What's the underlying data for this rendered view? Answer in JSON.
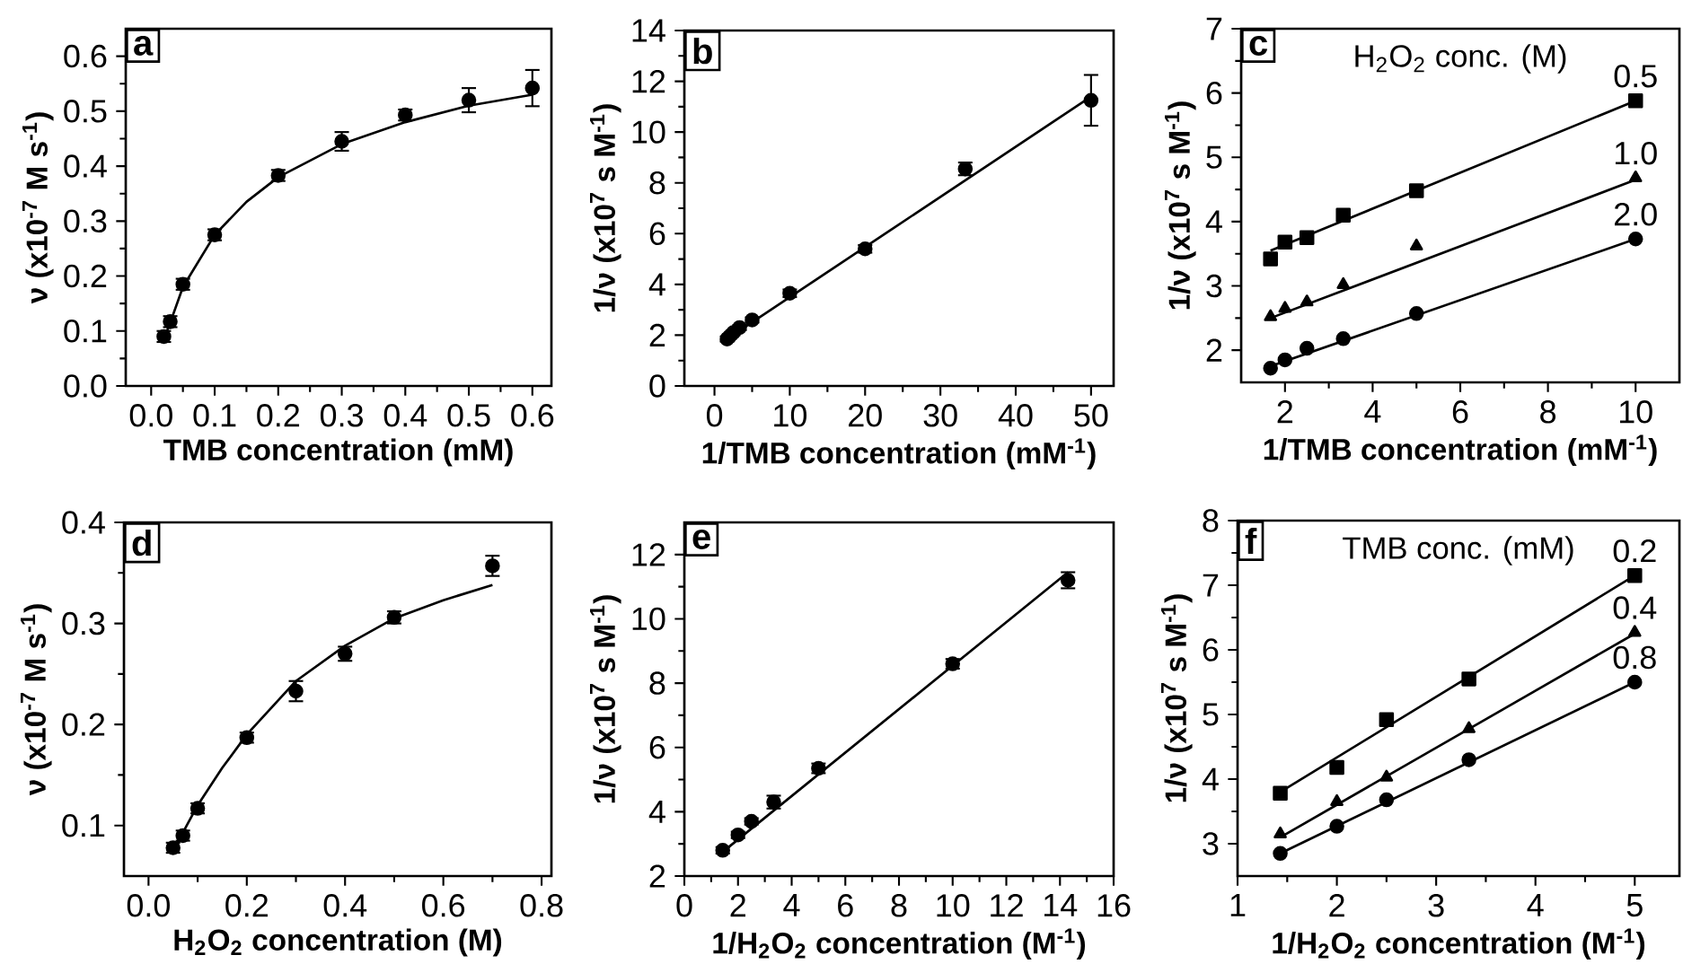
{
  "chart_data": [
    {
      "type": "scatter",
      "title": "a",
      "xlabel": "TMB concentration (mM)",
      "ylabel": "ν (x10$^{-7}$ M s$^{-1}$)",
      "xlim": [
        -0.04,
        0.63
      ],
      "ylim": [
        0,
        0.65
      ],
      "xticks": [
        {
          "value": 0,
          "label": "0.0"
        },
        0.1,
        0.2,
        0.3,
        0.4,
        0.5,
        0.6
      ],
      "yticks": [
        {
          "value": 0,
          "label": "0.0"
        },
        0.1,
        0.2,
        0.3,
        0.4,
        0.5,
        0.6
      ],
      "series": [
        {
          "marker": "circle",
          "color": "#000000",
          "x": [
            0.02,
            0.03,
            0.05,
            0.1,
            0.2,
            0.3,
            0.4,
            0.5,
            0.6
          ],
          "values": [
            0.09,
            0.117,
            0.185,
            0.275,
            0.383,
            0.445,
            0.493,
            0.52,
            0.542
          ],
          "errors": [
            0.01,
            0.01,
            0.01,
            0.01,
            0.01,
            0.017,
            0.01,
            0.022,
            0.033
          ]
        },
        {
          "type": "line",
          "marker": "none",
          "color": "#000000",
          "x": [
            0.02,
            0.03,
            0.05,
            0.1,
            0.15,
            0.2,
            0.3,
            0.4,
            0.5,
            0.6
          ],
          "values": [
            0.085,
            0.115,
            0.18,
            0.275,
            0.335,
            0.38,
            0.44,
            0.48,
            0.51,
            0.53
          ]
        }
      ]
    },
    {
      "type": "scatter",
      "title": "b",
      "xlabel": "1/TMB concentration (mM$^{-1}$)",
      "ylabel": "1/ν (x10$^{7}$ s M$^{-1}$)",
      "xlim": [
        -4,
        53
      ],
      "ylim": [
        0,
        14
      ],
      "xticks": [
        0,
        10,
        20,
        30,
        40,
        50
      ],
      "yticks": [
        0,
        2,
        4,
        6,
        8,
        10,
        12,
        14
      ],
      "series": [
        {
          "marker": "circle",
          "color": "#000000",
          "x": [
            1.67,
            2,
            2.5,
            3.33,
            5,
            10,
            20,
            33.3,
            50
          ],
          "values": [
            1.85,
            1.95,
            2.1,
            2.3,
            2.6,
            3.65,
            5.4,
            8.55,
            11.25
          ],
          "errors": [
            0.1,
            0.1,
            0.1,
            0.1,
            0.1,
            0.15,
            0.15,
            0.25,
            1.0
          ]
        },
        {
          "type": "line",
          "marker": "none",
          "color": "#000000",
          "x": [
            1.67,
            50
          ],
          "values": [
            1.85,
            11.4
          ]
        }
      ]
    },
    {
      "type": "scatter",
      "title": "c",
      "legend_title": "H$_{2}$O$_{2}$ conc. (M)",
      "xlabel": "1/TMB concentration (mM$^{-1}$)",
      "ylabel": "1/ν (x10$^{7}$ s M$^{-1}$)",
      "xlim": [
        1,
        11
      ],
      "ylim": [
        1.5,
        7
      ],
      "xticks": [
        2,
        4,
        6,
        8,
        10
      ],
      "yticks": [
        2,
        3,
        4,
        5,
        6,
        7
      ],
      "series": [
        {
          "name": "0.5",
          "marker": "square",
          "color": "#000000",
          "x": [
            1.67,
            2,
            2.5,
            3.33,
            5,
            10
          ],
          "values": [
            3.42,
            3.68,
            3.75,
            4.1,
            4.48,
            5.88
          ]
        },
        {
          "type": "line",
          "marker": "none",
          "color": "#000000",
          "x": [
            1.67,
            10
          ],
          "values": [
            3.55,
            5.88
          ]
        },
        {
          "name": "1.0",
          "marker": "triangle",
          "color": "#000000",
          "x": [
            1.67,
            2,
            2.5,
            3.33,
            5,
            10
          ],
          "values": [
            2.52,
            2.65,
            2.75,
            3.02,
            3.62,
            4.68
          ]
        },
        {
          "type": "line",
          "marker": "none",
          "color": "#000000",
          "x": [
            1.67,
            10
          ],
          "values": [
            2.5,
            4.65
          ]
        },
        {
          "name": "2.0",
          "marker": "circle",
          "color": "#000000",
          "x": [
            1.67,
            2,
            2.5,
            3.33,
            5,
            10
          ],
          "values": [
            1.72,
            1.85,
            2.03,
            2.18,
            2.57,
            3.73
          ]
        },
        {
          "type": "line",
          "marker": "none",
          "color": "#000000",
          "x": [
            1.67,
            10
          ],
          "values": [
            1.75,
            3.73
          ]
        }
      ]
    },
    {
      "type": "scatter",
      "title": "d",
      "xlabel": "H$_{2}$O$_{2}$ concentration (M)",
      "ylabel": "ν (x10$^{-7}$ M s$^{-1}$)",
      "xlim": [
        -0.05,
        0.82
      ],
      "ylim": [
        0.05,
        0.4
      ],
      "xticks": [
        {
          "value": 0,
          "label": "0.0"
        },
        0.2,
        0.4,
        0.6,
        0.8
      ],
      "yticks": [
        0.1,
        0.2,
        0.3,
        0.4
      ],
      "series": [
        {
          "marker": "circle",
          "color": "#000000",
          "x": [
            0.05,
            0.07,
            0.1,
            0.2,
            0.3,
            0.4,
            0.5,
            0.7
          ],
          "values": [
            0.078,
            0.09,
            0.117,
            0.187,
            0.233,
            0.27,
            0.306,
            0.357
          ],
          "errors": [
            0.005,
            0.005,
            0.005,
            0.005,
            0.01,
            0.007,
            0.006,
            0.01
          ]
        },
        {
          "type": "line",
          "marker": "none",
          "color": "#000000",
          "x": [
            0.05,
            0.1,
            0.15,
            0.2,
            0.3,
            0.4,
            0.5,
            0.6,
            0.7
          ],
          "values": [
            0.075,
            0.12,
            0.157,
            0.19,
            0.243,
            0.278,
            0.305,
            0.323,
            0.338
          ]
        }
      ]
    },
    {
      "type": "scatter",
      "title": "e",
      "xlabel": "1/H$_{2}$O$_{2}$ concentration (M$^{-1}$)",
      "ylabel": "1/ν (x10$^{7}$ s M$^{-1}$)",
      "xlim": [
        0,
        16
      ],
      "ylim": [
        2,
        13
      ],
      "xticks": [
        0,
        2,
        4,
        6,
        8,
        10,
        12,
        14,
        16
      ],
      "yticks": [
        2,
        4,
        6,
        8,
        10,
        12
      ],
      "series": [
        {
          "marker": "circle",
          "color": "#000000",
          "x": [
            1.43,
            2,
            2.5,
            3.33,
            5,
            10,
            14.3
          ],
          "values": [
            2.8,
            3.28,
            3.7,
            4.3,
            5.35,
            8.6,
            11.2
          ],
          "errors": [
            0.1,
            0.1,
            0.1,
            0.2,
            0.15,
            0.15,
            0.25
          ]
        },
        {
          "type": "line",
          "marker": "none",
          "color": "#000000",
          "x": [
            1.43,
            14.3
          ],
          "values": [
            2.75,
            11.45
          ]
        }
      ]
    },
    {
      "type": "scatter",
      "title": "f",
      "legend_title": "TMB conc. (mM)",
      "xlabel": "1/H$_{2}$O$_{2}$ concentration (M$^{-1}$)",
      "ylabel": "1/ν (x10$^{7}$ s M$^{-1}$)",
      "xlim": [
        1,
        5.45
      ],
      "ylim": [
        2.5,
        8
      ],
      "xticks": [
        1,
        2,
        3,
        4,
        5
      ],
      "yticks": [
        3,
        4,
        5,
        6,
        7,
        8
      ],
      "series": [
        {
          "name": "0.2",
          "marker": "square",
          "color": "#000000",
          "x": [
            1.43,
            2,
            2.5,
            3.33,
            5
          ],
          "values": [
            3.78,
            4.18,
            4.92,
            5.55,
            7.15
          ]
        },
        {
          "type": "line",
          "marker": "none",
          "color": "#000000",
          "x": [
            1.43,
            5
          ],
          "values": [
            3.8,
            7.15
          ]
        },
        {
          "name": "0.4",
          "marker": "triangle",
          "color": "#000000",
          "x": [
            1.43,
            2,
            2.5,
            3.33,
            5
          ],
          "values": [
            3.15,
            3.65,
            4.03,
            4.78,
            6.27
          ]
        },
        {
          "type": "line",
          "marker": "none",
          "color": "#000000",
          "x": [
            1.43,
            5
          ],
          "values": [
            3.1,
            6.25
          ]
        },
        {
          "name": "0.8",
          "marker": "circle",
          "color": "#000000",
          "x": [
            1.43,
            2,
            2.5,
            3.33,
            5
          ],
          "values": [
            2.85,
            3.27,
            3.68,
            4.3,
            5.5
          ]
        },
        {
          "type": "line",
          "marker": "none",
          "color": "#000000",
          "x": [
            1.43,
            5
          ],
          "values": [
            2.85,
            5.5
          ]
        }
      ]
    }
  ]
}
